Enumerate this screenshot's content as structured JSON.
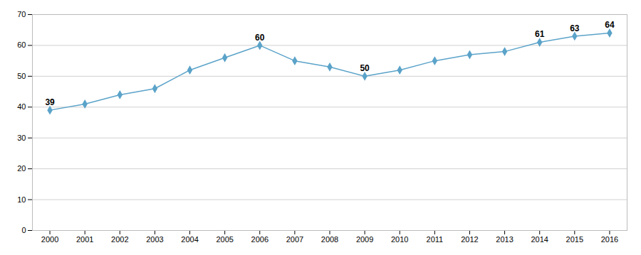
{
  "chart_data": {
    "type": "line",
    "x": [
      2000,
      2001,
      2002,
      2003,
      2004,
      2005,
      2006,
      2007,
      2008,
      2009,
      2010,
      2011,
      2012,
      2013,
      2014,
      2015,
      2016
    ],
    "values": [
      39,
      41,
      44,
      46,
      52,
      56,
      60,
      55,
      53,
      50,
      52,
      55,
      57,
      58,
      61,
      63,
      64
    ],
    "color": "#5ba3c9",
    "marker": "diamond",
    "xlim": [
      1999.5,
      2016.5
    ],
    "xticks": [
      2000,
      2001,
      2002,
      2003,
      2004,
      2005,
      2006,
      2007,
      2008,
      2009,
      2010,
      2011,
      2012,
      2013,
      2014,
      2015,
      2016
    ],
    "ylim": [
      0,
      70
    ],
    "yticks": [
      0,
      10,
      20,
      30,
      40,
      50,
      60,
      70
    ],
    "grid": true,
    "annotations": [
      {
        "x": 2000,
        "y": 39,
        "text": "39"
      },
      {
        "x": 2006,
        "y": 60,
        "text": "60"
      },
      {
        "x": 2009,
        "y": 50,
        "text": "50"
      },
      {
        "x": 2014,
        "y": 61,
        "text": "61"
      },
      {
        "x": 2015,
        "y": 63,
        "text": "63"
      },
      {
        "x": 2016,
        "y": 64,
        "text": "64"
      }
    ]
  }
}
